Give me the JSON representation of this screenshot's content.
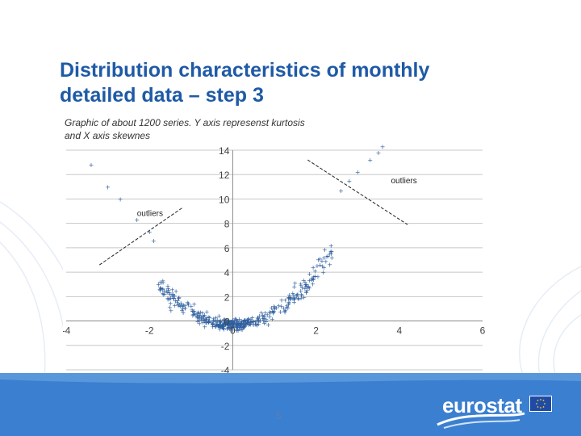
{
  "slide": {
    "title_line1": "Distribution characteristics of monthly",
    "title_line2": "detailed data – step 3",
    "page_number": "5",
    "logo_text": "eurostat",
    "colors": {
      "title": "#1f5aa6",
      "footer": "#3b7fd0",
      "marker": "#2f5f9f"
    }
  },
  "chart_data": {
    "type": "scatter",
    "caption_line1": "Graphic of about 1200 series. Y axis represenst kurtosis",
    "caption_line2": "and X axis skewnes",
    "xlim": [
      -4,
      6
    ],
    "ylim": [
      -4,
      14
    ],
    "x_ticks": [
      -4,
      -2,
      0,
      2,
      4,
      6
    ],
    "y_ticks": [
      -4,
      -2,
      0,
      2,
      4,
      6,
      8,
      10,
      12,
      14
    ],
    "gridlines": "horizontal",
    "marker": "+",
    "n_points_shown": 450,
    "relationship": "kurtosis ≈ 1.05·skewness² − 0.3 plus noise (parabolic cloud)",
    "annotations": [
      {
        "text": "outliers",
        "near": [
          -2.3,
          8.6
        ],
        "pointer_line": [
          [
            -3.2,
            4.6
          ],
          [
            -1.2,
            9.3
          ]
        ]
      },
      {
        "text": "outliers",
        "near": [
          3.8,
          11.3
        ],
        "pointer_line": [
          [
            1.8,
            13.2
          ],
          [
            4.2,
            7.9
          ]
        ]
      }
    ],
    "sample_outliers": [
      {
        "x": -3.4,
        "y": 12.8
      },
      {
        "x": -3.0,
        "y": 11.0
      },
      {
        "x": -2.7,
        "y": 10.0
      },
      {
        "x": -2.3,
        "y": 8.3
      },
      {
        "x": -2.0,
        "y": 7.3
      },
      {
        "x": -1.9,
        "y": 6.6
      },
      {
        "x": 3.6,
        "y": 14.3
      },
      {
        "x": 3.5,
        "y": 13.8
      },
      {
        "x": 3.3,
        "y": 13.2
      },
      {
        "x": 3.0,
        "y": 12.2
      },
      {
        "x": 2.8,
        "y": 11.5
      },
      {
        "x": 2.6,
        "y": 10.7
      }
    ]
  }
}
